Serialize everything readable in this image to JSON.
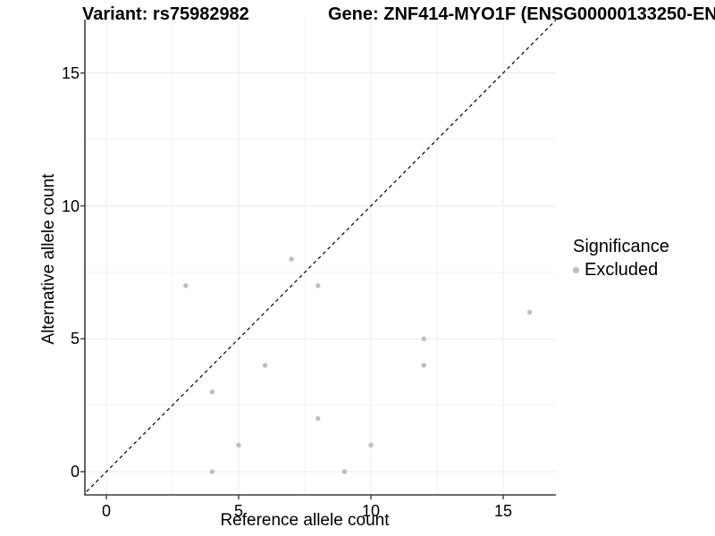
{
  "header": {
    "variant_title": "Variant: rs75982982",
    "gene_title": "Gene: ZNF414-MYO1F (ENSG00000133250-EN"
  },
  "chart_data": {
    "type": "scatter",
    "title": "",
    "xlabel": "Reference allele count",
    "ylabel": "Alternative allele count",
    "x_ticks": [
      "0",
      "5",
      "10",
      "15"
    ],
    "y_ticks": [
      "0",
      "5",
      "10",
      "15"
    ],
    "x_tick_values": [
      0,
      5,
      10,
      15
    ],
    "y_tick_values": [
      0,
      5,
      10,
      15
    ],
    "xlim": [
      -0.81,
      17.0
    ],
    "ylim": [
      -0.87,
      17.0
    ],
    "grid": "major and minor, light grey on white panel",
    "identity_line": {
      "type": "abline",
      "slope": 1,
      "intercept": 0,
      "style": "dashed",
      "color": "#000000"
    },
    "series": [
      {
        "name": "Excluded",
        "color": "#bebebe",
        "points": [
          [
            3,
            7
          ],
          [
            4,
            0
          ],
          [
            4,
            3
          ],
          [
            5,
            1
          ],
          [
            6,
            4
          ],
          [
            7,
            8
          ],
          [
            8,
            2
          ],
          [
            8,
            7
          ],
          [
            9,
            0
          ],
          [
            10,
            1
          ],
          [
            12,
            4
          ],
          [
            12,
            5
          ],
          [
            16,
            6
          ]
        ]
      }
    ],
    "legend": {
      "title": "Significance",
      "position": "right",
      "entries": [
        {
          "label": "Excluded",
          "color": "#bebebe"
        }
      ]
    }
  },
  "colors": {
    "panel_background": "#ffffff",
    "grid_major": "#ebebeb",
    "grid_minor": "#f2f2f2",
    "axis_line": "#3c3c3c",
    "point": "#bebebe",
    "text": "#000000"
  }
}
